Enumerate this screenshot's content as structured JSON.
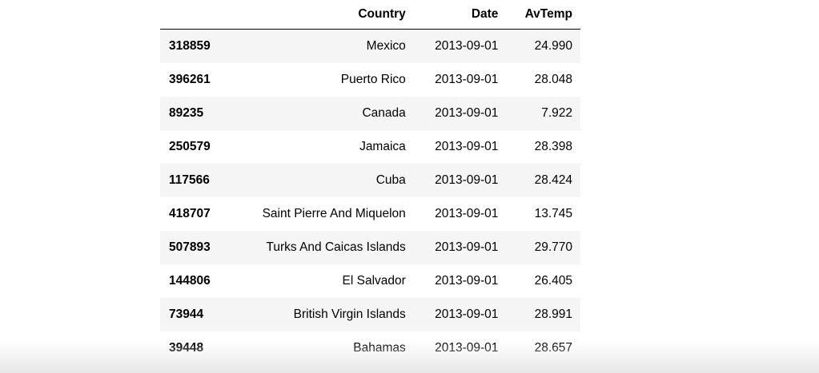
{
  "table": {
    "columns": [
      "",
      "Country",
      "Date",
      "AvTemp"
    ],
    "rows": [
      {
        "index": "318859",
        "country": "Mexico",
        "date": "2013-09-01",
        "avtemp": "24.990"
      },
      {
        "index": "396261",
        "country": "Puerto Rico",
        "date": "2013-09-01",
        "avtemp": "28.048"
      },
      {
        "index": "89235",
        "country": "Canada",
        "date": "2013-09-01",
        "avtemp": "7.922"
      },
      {
        "index": "250579",
        "country": "Jamaica",
        "date": "2013-09-01",
        "avtemp": "28.398"
      },
      {
        "index": "117566",
        "country": "Cuba",
        "date": "2013-09-01",
        "avtemp": "28.424"
      },
      {
        "index": "418707",
        "country": "Saint Pierre And Miquelon",
        "date": "2013-09-01",
        "avtemp": "13.745"
      },
      {
        "index": "507893",
        "country": "Turks And Caicas Islands",
        "date": "2013-09-01",
        "avtemp": "29.770"
      },
      {
        "index": "144806",
        "country": "El Salvador",
        "date": "2013-09-01",
        "avtemp": "26.405"
      },
      {
        "index": "73944",
        "country": "British Virgin Islands",
        "date": "2013-09-01",
        "avtemp": "28.991"
      },
      {
        "index": "39448",
        "country": "Bahamas",
        "date": "2013-09-01",
        "avtemp": "28.657"
      }
    ]
  }
}
